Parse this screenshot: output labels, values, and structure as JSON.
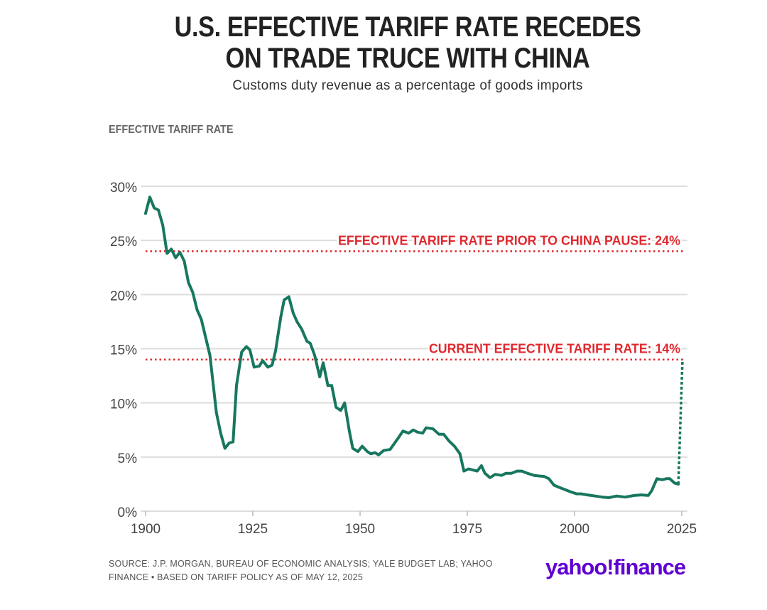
{
  "header": {
    "title_line1": "U.S. EFFECTIVE TARIFF RATE RECEDES",
    "title_line2": "ON TRADE TRUCE WITH CHINA",
    "subtitle": "Customs duty revenue as a percentage of goods imports"
  },
  "footer": {
    "source_line1": "SOURCE: J.P. MORGAN, BUREAU OF ECONOMIC ANALYSIS; YALE BUDGET LAB; YAHOO",
    "source_line2": "FINANCE • BASED ON TARIFF POLICY AS OF MAY 12, 2025",
    "logo": "yahoo!finance"
  },
  "colors": {
    "line": "#17775f",
    "reference": "#e0282e",
    "grid": "#dddddd",
    "logo": "#6001d2"
  },
  "chart_data": {
    "type": "line",
    "title": "U.S. EFFECTIVE TARIFF RATE RECEDES ON TRADE TRUCE WITH CHINA",
    "ylabel": "EFFECTIVE TARIFF RATE",
    "xlabel": "",
    "xlim": [
      1900,
      2025
    ],
    "ylim": [
      0,
      30
    ],
    "x_ticks": [
      1900,
      1925,
      1950,
      1975,
      2000,
      2025
    ],
    "x_tick_labels": [
      "1900",
      "1925",
      "1950",
      "1975",
      "2000",
      "2025"
    ],
    "y_ticks": [
      0,
      5,
      10,
      15,
      20,
      25,
      30
    ],
    "y_tick_labels": [
      "0%",
      "5%",
      "10%",
      "15%",
      "20%",
      "25%",
      "30%"
    ],
    "grid": true,
    "series": [
      {
        "name": "Effective tariff rate",
        "x": [
          1900,
          1901,
          1902,
          1903,
          1904,
          1905,
          1906,
          1907,
          1908,
          1909,
          1910,
          1911,
          1912,
          1913,
          1915,
          1916.5,
          1917.5,
          1918.5,
          1919.5,
          1920.4,
          1921.2,
          1922.4,
          1923.5,
          1924.3,
          1925.3,
          1926.5,
          1927.3,
          1928.5,
          1929.5,
          1930.3,
          1931.5,
          1932.3,
          1933.4,
          1934.4,
          1935.3,
          1936.4,
          1937.6,
          1938.4,
          1939.4,
          1940.6,
          1941.4,
          1942.5,
          1943.4,
          1944.4,
          1945.5,
          1946.4,
          1947.5,
          1948.3,
          1949.5,
          1950.5,
          1951.7,
          1952.5,
          1953.5,
          1954.3,
          1955.5,
          1957,
          1958.8,
          1960,
          1961.3,
          1962.4,
          1963.4,
          1964.6,
          1965.4,
          1967,
          1968.4,
          1969.5,
          1970.7,
          1972,
          1973.3,
          1974.2,
          1975.3,
          1977.3,
          1978.3,
          1979.1,
          1980.3,
          1981.5,
          1983,
          1984,
          1985.3,
          1986.6,
          1987.7,
          1989,
          1990.6,
          1993,
          1994,
          1995.2,
          1996.4,
          1997.7,
          1999,
          2000.5,
          2001.5,
          2003,
          2004.8,
          2006.5,
          2008,
          2009.8,
          2011.8,
          2013.9,
          2015.6,
          2017.2,
          2018,
          2019.2,
          2020.4,
          2021.4,
          2022.2,
          2023.3,
          2024.2
        ],
        "y": [
          27.5,
          29.0,
          28.0,
          27.8,
          26.4,
          23.8,
          24.2,
          23.4,
          23.9,
          23.1,
          21.1,
          20.2,
          18.6,
          17.7,
          14.4,
          9.1,
          7.2,
          5.8,
          6.3,
          6.4,
          11.6,
          14.7,
          15.2,
          14.9,
          13.3,
          13.4,
          13.9,
          13.3,
          13.5,
          14.8,
          17.9,
          19.5,
          19.8,
          18.3,
          17.5,
          16.8,
          15.7,
          15.5,
          14.4,
          12.4,
          13.7,
          11.6,
          11.6,
          9.6,
          9.3,
          10.0,
          7.4,
          5.8,
          5.5,
          6.0,
          5.5,
          5.3,
          5.4,
          5.2,
          5.6,
          5.7,
          6.7,
          7.4,
          7.2,
          7.5,
          7.3,
          7.2,
          7.7,
          7.6,
          7.1,
          7.1,
          6.5,
          6.0,
          5.3,
          3.7,
          3.9,
          3.7,
          4.2,
          3.5,
          3.1,
          3.4,
          3.3,
          3.5,
          3.5,
          3.7,
          3.7,
          3.5,
          3.3,
          3.2,
          3.0,
          2.4,
          2.2,
          2.0,
          1.8,
          1.6,
          1.6,
          1.5,
          1.4,
          1.3,
          1.25,
          1.4,
          1.3,
          1.45,
          1.5,
          1.45,
          1.9,
          3.0,
          2.9,
          3.0,
          3.0,
          2.6,
          2.5
        ]
      },
      {
        "name": "Projected jump (dashed)",
        "x": [
          2024.2,
          2025
        ],
        "y": [
          2.5,
          14
        ]
      }
    ],
    "reference_lines": [
      {
        "value": 24,
        "label": "EFFECTIVE TARIFF RATE PRIOR TO CHINA PAUSE: 24%"
      },
      {
        "value": 14,
        "label": "CURRENT EFFECTIVE TARIFF RATE: 14%"
      }
    ]
  }
}
